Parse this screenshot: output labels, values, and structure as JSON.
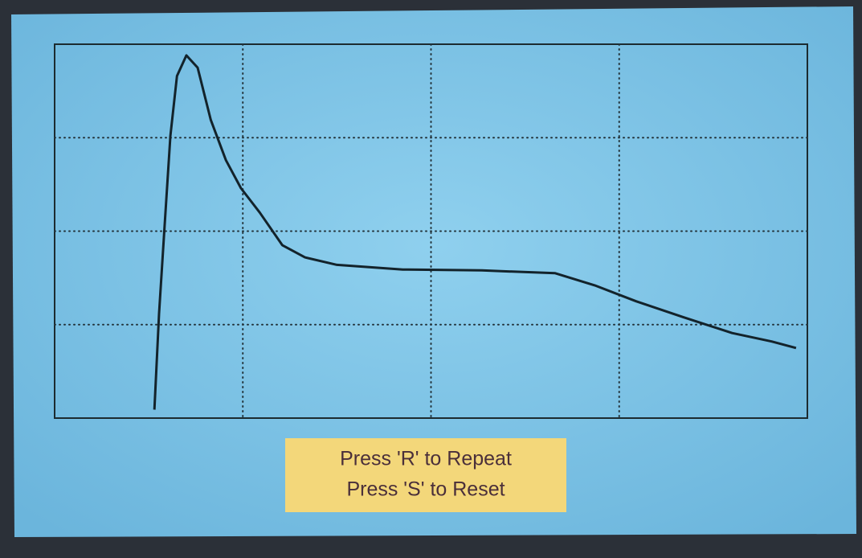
{
  "chart_data": {
    "type": "line",
    "x": [
      0.53,
      0.555,
      0.585,
      0.615,
      0.65,
      0.7,
      0.76,
      0.83,
      0.91,
      0.99,
      1.09,
      1.21,
      1.33,
      1.5,
      1.85,
      2.27,
      2.66,
      2.87,
      3.09,
      3.34,
      3.6,
      3.81,
      3.94
    ],
    "values": [
      0.09,
      1.12,
      2.07,
      3.02,
      3.66,
      3.88,
      3.75,
      3.19,
      2.76,
      2.46,
      2.2,
      1.85,
      1.72,
      1.64,
      1.59,
      1.58,
      1.55,
      1.42,
      1.25,
      1.08,
      0.91,
      0.82,
      0.75
    ],
    "color": "#13232b",
    "xlim": [
      0,
      4
    ],
    "ylim": [
      0,
      4
    ],
    "xticks": [
      1,
      2,
      3
    ],
    "yticks": [
      1,
      2,
      3
    ],
    "grid": true,
    "annotations": [
      "Press 'R' to Repeat",
      "Press 'S' to Reset"
    ]
  }
}
